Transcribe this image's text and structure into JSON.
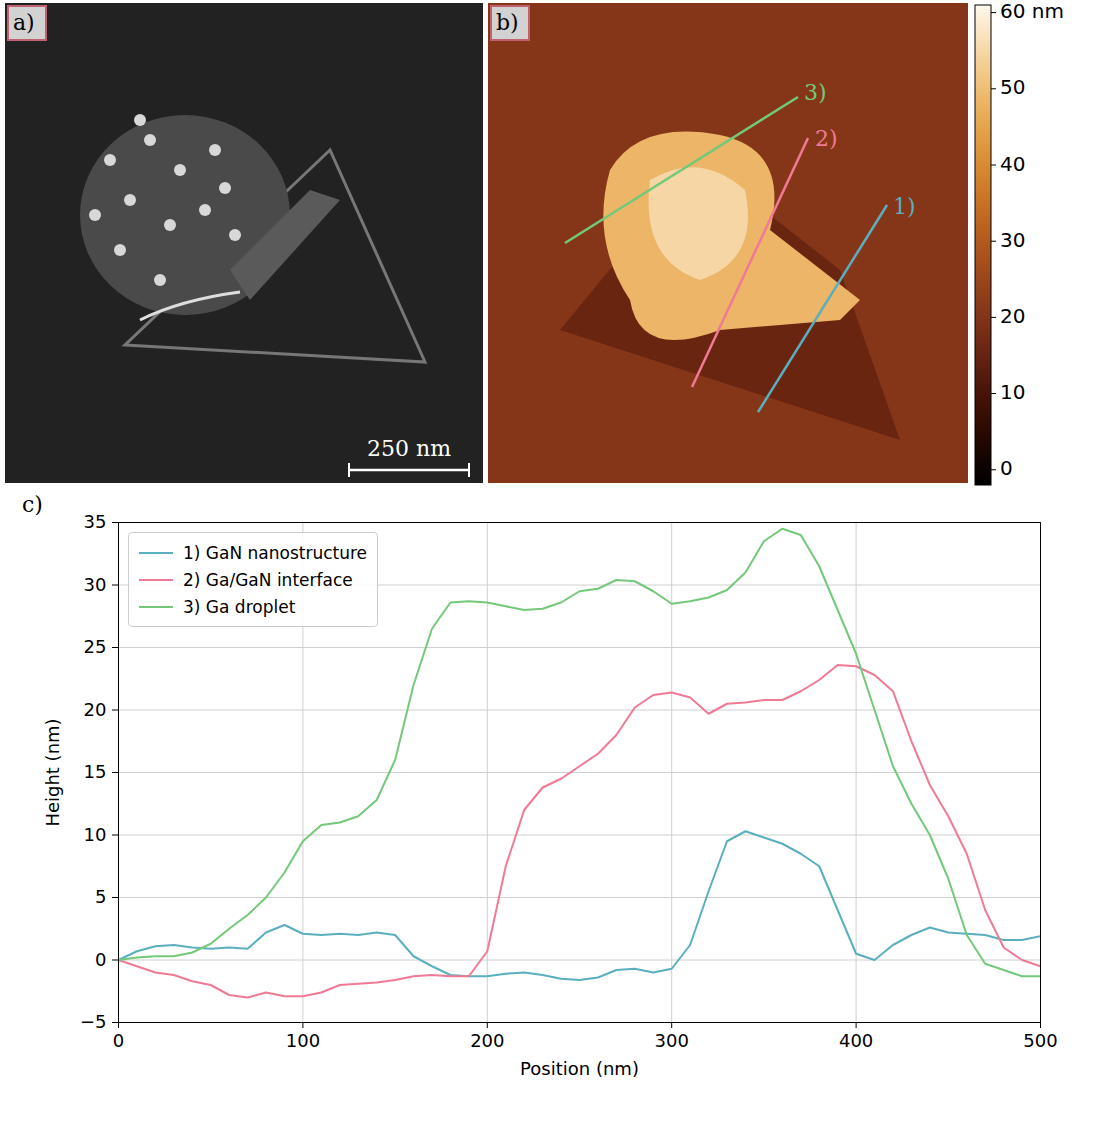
{
  "panel_a": {
    "label": "a)",
    "scale_bar": "250 nm"
  },
  "panel_b": {
    "label": "b)",
    "profile_labels": [
      "1)",
      "2)",
      "3)"
    ],
    "colorbar": {
      "range": [
        -2,
        61
      ],
      "ticks": [
        0,
        10,
        20,
        30,
        40,
        50,
        {
          "value": 60,
          "label": "60 nm"
        }
      ]
    }
  },
  "chart_data": {
    "type": "line",
    "label": "c)",
    "x_label": "Position (nm)",
    "y_label": "Height (nm)",
    "x": [
      0,
      10,
      20,
      30,
      40,
      50,
      60,
      70,
      80,
      90,
      100,
      110,
      120,
      130,
      140,
      150,
      160,
      170,
      180,
      190,
      200,
      210,
      220,
      230,
      240,
      250,
      260,
      270,
      280,
      290,
      300,
      310,
      320,
      330,
      340,
      350,
      360,
      370,
      380,
      390,
      400,
      410,
      420,
      430,
      440,
      450,
      460,
      470,
      480,
      490,
      500
    ],
    "series": [
      {
        "name": "1) GaN nanostructure",
        "color": "#5aafbf",
        "values": [
          0,
          0.7,
          1.1,
          1.2,
          1.0,
          0.9,
          1.0,
          0.9,
          2.2,
          2.8,
          2.1,
          2.0,
          2.1,
          2.0,
          2.2,
          2.0,
          0.3,
          -0.5,
          -1.2,
          -1.3,
          -1.3,
          -1.1,
          -1.0,
          -1.2,
          -1.5,
          -1.6,
          -1.4,
          -0.8,
          -0.7,
          -1.0,
          -0.7,
          1.2,
          5.5,
          9.5,
          10.3,
          9.8,
          9.3,
          8.5,
          7.5,
          4.0,
          0.5,
          0,
          1.2,
          2.0,
          2.6,
          2.2,
          2.1,
          2.0,
          1.6,
          1.6,
          1.9
        ]
      },
      {
        "name": "2) Ga/GaN interface",
        "color": "#f07a94",
        "values": [
          0,
          -0.5,
          -1.0,
          -1.2,
          -1.7,
          -2.0,
          -2.8,
          -3.0,
          -2.6,
          -2.9,
          -2.9,
          -2.6,
          -2.0,
          -1.9,
          -1.8,
          -1.6,
          -1.3,
          -1.2,
          -1.3,
          -1.3,
          0.7,
          7.5,
          12,
          13.8,
          14.5,
          15.5,
          16.5,
          18,
          20.2,
          21.2,
          21.4,
          21,
          19.7,
          20.5,
          20.6,
          20.8,
          20.8,
          21.5,
          22.4,
          23.6,
          23.5,
          22.8,
          21.5,
          17.5,
          14,
          11.5,
          8.5,
          4,
          1,
          0,
          -0.5
        ]
      },
      {
        "name": "3) Ga droplet",
        "color": "#74c87a",
        "values": [
          0,
          0.2,
          0.3,
          0.3,
          0.6,
          1.3,
          2.5,
          3.6,
          5,
          7,
          9.5,
          10.8,
          11,
          11.5,
          12.8,
          16,
          22,
          26.5,
          28.6,
          28.7,
          28.6,
          28.3,
          28.0,
          28.1,
          28.6,
          29.5,
          29.7,
          30.4,
          30.3,
          29.5,
          28.5,
          28.7,
          29.0,
          29.6,
          31,
          33.5,
          34.5,
          34,
          31.5,
          28,
          24.5,
          20,
          15.5,
          12.5,
          10,
          6.5,
          2,
          -0.3,
          -0.8,
          -1.3,
          -1.3
        ]
      }
    ],
    "xlim": [
      0,
      500
    ],
    "xticks": [
      0,
      100,
      200,
      300,
      400,
      500
    ],
    "ylim": [
      -5,
      35
    ],
    "yticks": [
      {
        "value": -5,
        "label": "−5"
      },
      0,
      5,
      10,
      15,
      20,
      25,
      30,
      35
    ],
    "grid": true,
    "legend": "upper left"
  }
}
